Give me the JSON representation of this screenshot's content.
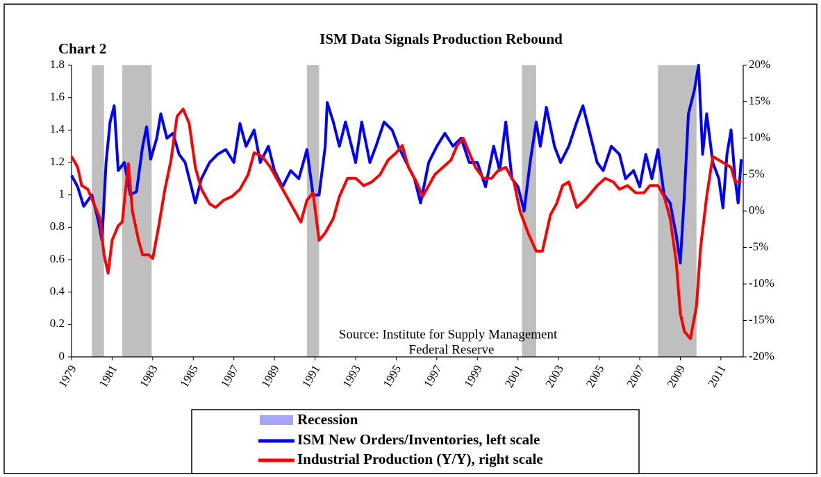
{
  "chart_data": {
    "type": "line",
    "title": "ISM Data Signals Production Rebound",
    "label": "Chart 2",
    "source": [
      "Source: Institute for Supply Management",
      "Federal Reserve"
    ],
    "xlim": [
      1979,
      2012.1
    ],
    "xticks": [
      1979,
      1981,
      1983,
      1985,
      1987,
      1989,
      1991,
      1993,
      1995,
      1997,
      1999,
      2001,
      2003,
      2005,
      2007,
      2009,
      2011
    ],
    "ylim": [
      0,
      1.8
    ],
    "yticks": [
      0,
      0.2,
      0.4,
      0.6,
      0.8,
      1,
      1.2,
      1.4,
      1.6,
      1.8
    ],
    "y2lim": [
      -20,
      20
    ],
    "y2ticks": [
      {
        "value": -20,
        "label": "-20%"
      },
      {
        "value": -15,
        "label": "-15%"
      },
      {
        "value": -10,
        "label": "-10%"
      },
      {
        "value": -5,
        "label": "-5%"
      },
      {
        "value": 0,
        "label": "0%"
      },
      {
        "value": 5,
        "label": "5%"
      },
      {
        "value": 10,
        "label": "10%"
      },
      {
        "value": 15,
        "label": "15%"
      },
      {
        "value": 20,
        "label": "20%"
      }
    ],
    "recession": {
      "name": "Recession",
      "color": "#bfbfbf",
      "legend_color": "#a6a6f2",
      "periods": [
        {
          "start": 1980.0,
          "end": 1980.6
        },
        {
          "start": 1981.5,
          "end": 1982.95
        },
        {
          "start": 1990.6,
          "end": 1991.2
        },
        {
          "start": 2001.2,
          "end": 2001.9
        },
        {
          "start": 2007.9,
          "end": 2009.8
        }
      ]
    },
    "series": [
      {
        "name": "ISM New Orders/Inventories, left scale",
        "color": "#0000ff",
        "axis": "y",
        "x": [
          1979.0,
          1979.3,
          1979.6,
          1980.0,
          1980.3,
          1980.5,
          1980.7,
          1980.9,
          1981.1,
          1981.3,
          1981.6,
          1981.9,
          1982.2,
          1982.5,
          1982.7,
          1982.9,
          1983.2,
          1983.4,
          1983.7,
          1984.0,
          1984.3,
          1984.6,
          1984.9,
          1985.1,
          1985.4,
          1985.8,
          1986.2,
          1986.6,
          1987.0,
          1987.3,
          1987.6,
          1988.0,
          1988.3,
          1988.7,
          1989.0,
          1989.4,
          1989.8,
          1990.2,
          1990.6,
          1990.9,
          1991.2,
          1991.5,
          1991.6,
          1991.9,
          1992.2,
          1992.5,
          1992.8,
          1993.0,
          1993.3,
          1993.7,
          1994.0,
          1994.4,
          1994.8,
          1995.1,
          1995.5,
          1995.9,
          1996.2,
          1996.6,
          1997.0,
          1997.4,
          1997.8,
          1998.2,
          1998.6,
          1999.0,
          1999.4,
          1999.8,
          2000.1,
          2000.4,
          2000.7,
          2001.0,
          2001.3,
          2001.6,
          2001.9,
          2002.1,
          2002.4,
          2002.8,
          2003.1,
          2003.5,
          2003.9,
          2004.2,
          2004.5,
          2004.9,
          2005.2,
          2005.6,
          2006.0,
          2006.3,
          2006.7,
          2007.0,
          2007.3,
          2007.6,
          2007.9,
          2008.2,
          2008.5,
          2008.8,
          2009.0,
          2009.2,
          2009.4,
          2009.7,
          2009.9,
          2010.1,
          2010.3,
          2010.6,
          2010.9,
          2011.1,
          2011.3,
          2011.5,
          2011.7,
          2011.85,
          2012.0
        ],
        "values": [
          1.12,
          1.05,
          0.93,
          1.0,
          0.85,
          0.72,
          1.2,
          1.45,
          1.55,
          1.15,
          1.2,
          1.0,
          1.02,
          1.3,
          1.42,
          1.22,
          1.35,
          1.5,
          1.35,
          1.38,
          1.25,
          1.2,
          1.05,
          0.95,
          1.1,
          1.2,
          1.25,
          1.28,
          1.2,
          1.44,
          1.3,
          1.4,
          1.2,
          1.3,
          1.15,
          1.05,
          1.15,
          1.1,
          1.28,
          1.0,
          1.0,
          1.3,
          1.57,
          1.45,
          1.3,
          1.45,
          1.3,
          1.2,
          1.45,
          1.2,
          1.3,
          1.45,
          1.4,
          1.3,
          1.2,
          1.1,
          0.95,
          1.2,
          1.3,
          1.38,
          1.3,
          1.35,
          1.2,
          1.2,
          1.05,
          1.3,
          1.15,
          1.45,
          1.1,
          1.05,
          0.9,
          1.2,
          1.45,
          1.3,
          1.54,
          1.3,
          1.2,
          1.3,
          1.45,
          1.55,
          1.4,
          1.2,
          1.15,
          1.3,
          1.25,
          1.1,
          1.15,
          1.05,
          1.25,
          1.1,
          1.28,
          1.0,
          0.95,
          0.75,
          0.58,
          1.0,
          1.5,
          1.65,
          1.8,
          1.25,
          1.5,
          1.2,
          1.1,
          0.92,
          1.25,
          1.4,
          1.1,
          0.95,
          1.22
        ]
      },
      {
        "name": "Industrial Production (Y/Y), right scale",
        "color": "#ff0000",
        "axis": "y2",
        "x": [
          1979.0,
          1979.3,
          1979.5,
          1979.8,
          1980.1,
          1980.4,
          1980.6,
          1980.8,
          1981.0,
          1981.3,
          1981.5,
          1981.8,
          1982.0,
          1982.3,
          1982.5,
          1982.8,
          1983.0,
          1983.3,
          1983.6,
          1983.9,
          1984.2,
          1984.5,
          1984.8,
          1985.1,
          1985.4,
          1985.8,
          1986.1,
          1986.5,
          1986.9,
          1987.3,
          1987.7,
          1988.0,
          1988.4,
          1988.8,
          1989.2,
          1989.6,
          1990.0,
          1990.3,
          1990.6,
          1990.9,
          1991.2,
          1991.5,
          1991.9,
          1992.2,
          1992.6,
          1993.0,
          1993.4,
          1993.8,
          1994.2,
          1994.6,
          1995.0,
          1995.3,
          1995.6,
          1996.0,
          1996.3,
          1996.6,
          1996.9,
          1997.3,
          1997.7,
          1998.0,
          1998.3,
          1998.6,
          1998.9,
          1999.3,
          1999.7,
          2000.0,
          2000.4,
          2000.8,
          2001.1,
          2001.5,
          2001.9,
          2002.2,
          2002.6,
          2002.9,
          2003.2,
          2003.5,
          2003.9,
          2004.3,
          2004.6,
          2004.9,
          2005.3,
          2005.7,
          2006.0,
          2006.4,
          2006.8,
          2007.2,
          2007.5,
          2007.9,
          2008.2,
          2008.5,
          2008.8,
          2009.0,
          2009.2,
          2009.5,
          2009.8,
          2010.0,
          2010.3,
          2010.6,
          2010.9,
          2011.2,
          2011.5,
          2011.7,
          2012.0
        ],
        "values": [
          7.5,
          6,
          3.5,
          3,
          1,
          -1,
          -6,
          -8.5,
          -4,
          -2,
          -1.5,
          6.5,
          0,
          -4,
          -6,
          -6,
          -6.5,
          -2,
          3,
          7,
          13,
          14,
          12,
          6,
          3,
          1,
          0.5,
          1.5,
          2,
          3,
          5,
          8,
          7.5,
          6,
          4,
          2,
          0,
          -1.5,
          1.5,
          2.5,
          -4,
          -3,
          -1,
          2,
          4.5,
          4.5,
          3.5,
          4,
          5,
          7,
          8,
          9,
          6,
          4,
          2,
          3.5,
          5,
          6,
          7,
          9,
          10,
          8,
          6,
          4.5,
          4.5,
          5.5,
          6,
          4,
          0,
          -3,
          -5.5,
          -5.5,
          -0.5,
          1,
          3.5,
          4,
          0.5,
          1.5,
          2.5,
          3.5,
          4.5,
          4,
          3,
          3.5,
          2.5,
          2.5,
          3.5,
          3.5,
          2,
          -1,
          -7,
          -14,
          -16.5,
          -17.5,
          -13,
          -5,
          2,
          7.5,
          7,
          6.5,
          6,
          4,
          4
        ]
      }
    ]
  }
}
